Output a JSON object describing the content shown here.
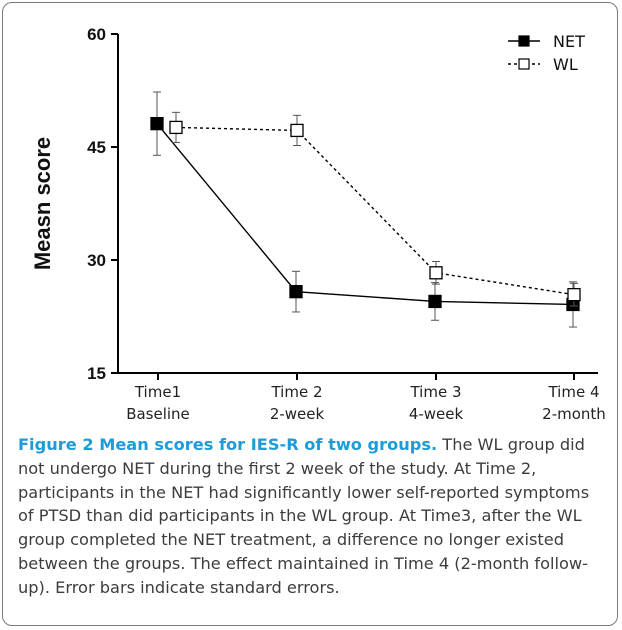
{
  "chart_data": {
    "type": "line",
    "title": "",
    "xlabel": "",
    "ylabel": "Measn score",
    "ylim": [
      15,
      60
    ],
    "yticks": [
      15,
      30,
      45,
      60
    ],
    "grid": false,
    "legend_position": "top-right",
    "categories": [
      {
        "line1": "Time1",
        "line2": "Baseline"
      },
      {
        "line1": "Time 2",
        "line2": "2-week"
      },
      {
        "line1": "Time 3",
        "line2": "4-week"
      },
      {
        "line1": "Time 4",
        "line2": "2-month"
      }
    ],
    "series": [
      {
        "name": "NET",
        "marker": "filled-square",
        "line_style": "solid",
        "color": "#000000",
        "values": [
          48.1,
          25.8,
          24.5,
          24.1
        ],
        "errors": [
          4.2,
          2.7,
          2.5,
          3.0
        ]
      },
      {
        "name": "WL",
        "marker": "open-square",
        "line_style": "dashed",
        "color": "#000000",
        "values": [
          47.6,
          47.2,
          28.3,
          25.4
        ],
        "errors": [
          2.0,
          2.0,
          1.5,
          1.5
        ]
      }
    ]
  },
  "caption": {
    "title": "Figure 2 Mean scores for IES-R of two groups.",
    "text": " The WL group did not undergo NET during the first 2 week of the study. At Time 2, participants in the NET had significantly lower self-reported symptoms of PTSD than did participants in the WL group. At Time3, after the WL group completed the NET treatment, a difference no longer existed between the groups. The effect maintained in Time 4 (2-month follow-up). Error bars indicate standard errors."
  }
}
